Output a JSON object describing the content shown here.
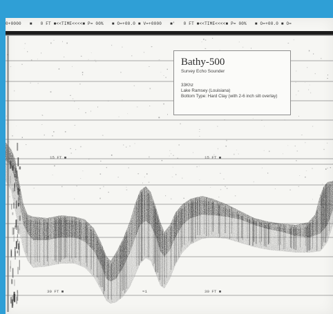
{
  "header_strip": {
    "segments": [
      "0+0000",
      "■",
      "0 FT ■<<TIME<<<<■ P= 00%",
      "■ O=+00.0 ■ V=+0000",
      "■'",
      "0 FT ■<<TIME<<<<■ P= 00%",
      "■ O=+00.0 ■ O="
    ]
  },
  "info_box": {
    "title": "Bathy-500",
    "subtitle": "Survey Echo Sounder",
    "frequency": "33Khz",
    "location": "Lake Ramsey (Louisiana)",
    "bottom_type": "Bottom Type: Hard Clay (with 2-6 inch silt overlay)"
  },
  "depth_labels": {
    "mid_left": "15 FT ■",
    "mid_right": "15 FT ■",
    "bottom_left": "30 FT ■",
    "bottom_mid": "≈1",
    "bottom_right": "30 FT ■"
  },
  "colors": {
    "background_blue": "#2f9fd6",
    "paper": "#f6f6f3",
    "ink": "#1f1f1f",
    "grid": "#7f7f7f"
  }
}
